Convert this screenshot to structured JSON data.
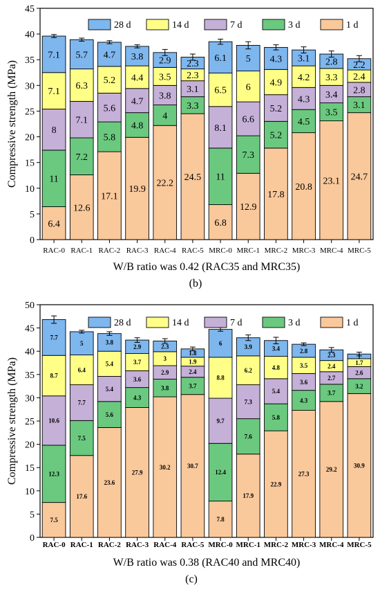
{
  "panels": [
    {
      "caption": "(b)"
    },
    {
      "caption": "(c)"
    }
  ],
  "chart_data": [
    {
      "type": "bar",
      "stacked": true,
      "categories": [
        "RAC-0",
        "RAC-1",
        "RAC-2",
        "RAC-3",
        "RAC-4",
        "RAC-5",
        "MRC-0",
        "MRC-1",
        "MRC-2",
        "MRC-3",
        "MRC-4",
        "MRC-5"
      ],
      "series": [
        {
          "name": "1 d",
          "color": "#f9c89b",
          "values": [
            6.4,
            12.6,
            17.1,
            19.9,
            22.2,
            24.5,
            6.8,
            12.9,
            17.8,
            20.8,
            23.1,
            24.7
          ]
        },
        {
          "name": "3 d",
          "color": "#6bc97f",
          "values": [
            11,
            7.2,
            5.8,
            4.8,
            4,
            3.3,
            11,
            7.3,
            5.2,
            4.5,
            3.5,
            3.1
          ]
        },
        {
          "name": "7 d",
          "color": "#c5b0d8",
          "values": [
            8,
            7.1,
            5.6,
            4.7,
            3.8,
            3.1,
            8.1,
            6.6,
            5.2,
            4.3,
            3.4,
            2.8
          ]
        },
        {
          "name": "14 d",
          "color": "#ffff88",
          "values": [
            7.1,
            6.3,
            5.2,
            4.4,
            3.5,
            2.3,
            6.5,
            6,
            4.9,
            4.2,
            3.3,
            2.4
          ]
        },
        {
          "name": "28 d",
          "color": "#7eb6ee",
          "values": [
            7.1,
            5.7,
            4.7,
            3.8,
            2.9,
            2.3,
            6.1,
            5,
            4.3,
            3.1,
            2.8,
            2.2
          ]
        }
      ],
      "error_bars": [
        0.3,
        0.3,
        0.3,
        0.3,
        0.6,
        0.6,
        0.5,
        0.7,
        0.5,
        0.6,
        0.6,
        0.6
      ],
      "ylabel": "Compressive strength (MPa)",
      "xlabel": "W/B ratio was 0.42 (RAC35 and MRC35)",
      "ylim": [
        0,
        45
      ],
      "yticks": [
        0,
        5,
        10,
        15,
        20,
        25,
        30,
        35,
        40,
        45
      ],
      "label_style": "normal",
      "legend_position": "top"
    },
    {
      "type": "bar",
      "stacked": true,
      "categories": [
        "RAC-0",
        "RAC-1",
        "RAC-2",
        "RAC-3",
        "RAC-4",
        "RAC-5",
        "MRC-0",
        "MRC-1",
        "MRC-2",
        "MRC-3",
        "MRC-4",
        "MRC-5"
      ],
      "series": [
        {
          "name": "1 d",
          "color": "#f9c89b",
          "values": [
            7.5,
            17.6,
            23.6,
            27.9,
            30.2,
            30.7,
            7.8,
            17.9,
            22.9,
            27.3,
            29.2,
            30.9
          ]
        },
        {
          "name": "3 d",
          "color": "#6bc97f",
          "values": [
            12.3,
            7.5,
            5.6,
            4.3,
            3.8,
            3.7,
            12.4,
            7.6,
            5.8,
            4.3,
            3.7,
            3.2
          ]
        },
        {
          "name": "7 d",
          "color": "#c5b0d8",
          "values": [
            10.6,
            7.7,
            5.4,
            3.6,
            2.9,
            2.4,
            9.7,
            7.3,
            5.4,
            3.6,
            2.7,
            2.6
          ]
        },
        {
          "name": "14 d",
          "color": "#ffff88",
          "values": [
            8.7,
            6.4,
            5.4,
            3.7,
            3,
            1.9,
            8.8,
            6.2,
            4.8,
            3.5,
            2.4,
            1.7
          ]
        },
        {
          "name": "28 d",
          "color": "#7eb6ee",
          "values": [
            7.7,
            5,
            3.8,
            2.9,
            2.3,
            1.8,
            6,
            3.9,
            3.4,
            2.8,
            2.3,
            1
          ]
        }
      ],
      "error_bars": [
        0.8,
        0.3,
        0.4,
        0.5,
        0.5,
        0.4,
        0.4,
        0.6,
        0.7,
        0.3,
        0.5,
        0.4
      ],
      "ylabel": "Compressive strength (MPa)",
      "xlabel": "W/B ratio was 0.38 (RAC40 and MRC40)",
      "ylim": [
        0,
        50
      ],
      "yticks": [
        0,
        5,
        10,
        15,
        20,
        25,
        30,
        35,
        40,
        45,
        50
      ],
      "label_style": "bold",
      "legend_position": "top"
    }
  ]
}
